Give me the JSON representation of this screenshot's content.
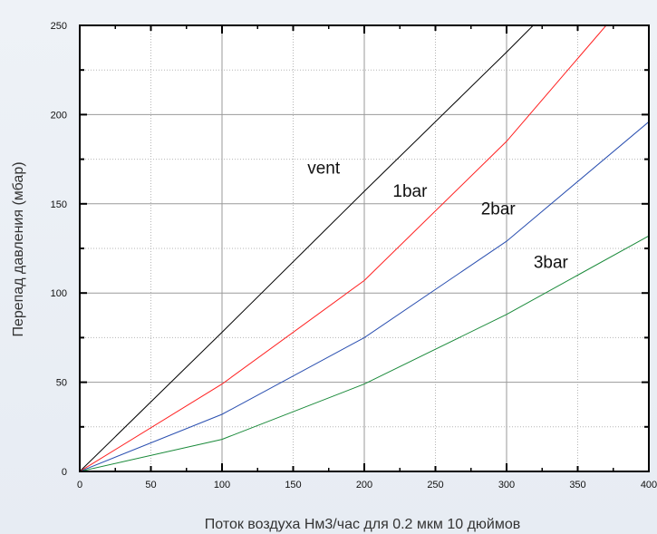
{
  "chart_data": {
    "type": "line",
    "xlabel": "Поток воздуха Нм3/час для 0.2 мкм 10 дюймов",
    "ylabel": "Перепад давления  (мбар)",
    "xlim": [
      0,
      400
    ],
    "ylim": [
      0,
      250
    ],
    "x_ticks": [
      0,
      50,
      100,
      150,
      200,
      250,
      300,
      350,
      400
    ],
    "y_ticks": [
      0,
      50,
      100,
      150,
      200,
      250
    ],
    "grid": true,
    "series": [
      {
        "name": "vent",
        "color": "#000000",
        "x": [
          0,
          100,
          200,
          300,
          320
        ],
        "y": [
          0,
          78,
          157,
          235,
          251
        ]
      },
      {
        "name": "1bar",
        "color": "#ff2020",
        "x": [
          0,
          100,
          200,
          300,
          370
        ],
        "y": [
          0,
          49,
          107,
          185,
          250
        ]
      },
      {
        "name": "2bar",
        "color": "#2a4fb0",
        "x": [
          0,
          100,
          200,
          300,
          400
        ],
        "y": [
          0,
          32,
          75,
          129,
          196
        ]
      },
      {
        "name": "3bar",
        "color": "#1a8a3a",
        "x": [
          0,
          100,
          200,
          300,
          400
        ],
        "y": [
          0,
          18,
          49,
          88,
          132
        ]
      }
    ],
    "annotations": [
      {
        "text": "vent",
        "x": 160,
        "y": 167
      },
      {
        "text": "1bar",
        "x": 220,
        "y": 154
      },
      {
        "text": "2bar",
        "x": 282,
        "y": 144
      },
      {
        "text": "3bar",
        "x": 319,
        "y": 114
      }
    ]
  }
}
